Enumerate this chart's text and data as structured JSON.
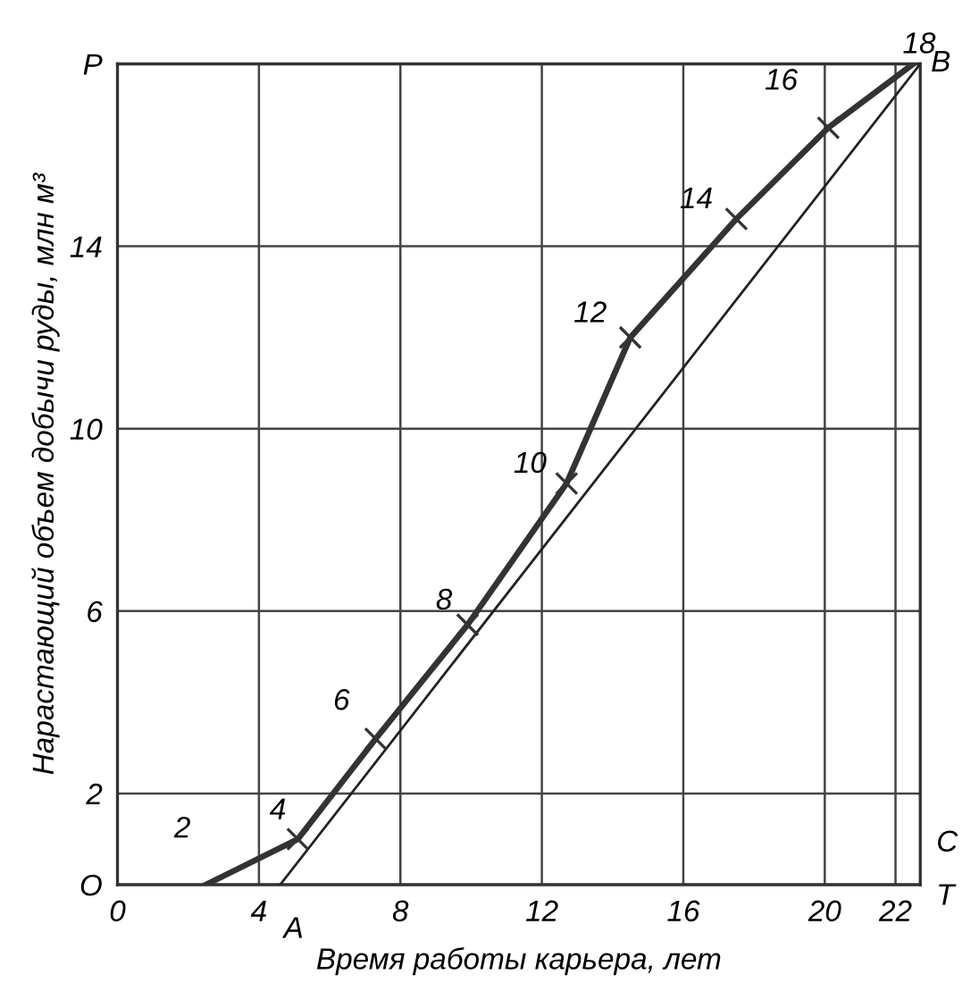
{
  "chart_data": {
    "type": "line",
    "xlabel": "Время работы карьера, лет",
    "ylabel": "Нарастающий объем добычи руды, млн м³",
    "xlim": [
      0,
      22.7
    ],
    "ylim": [
      0,
      18
    ],
    "xticks": [
      0,
      4,
      8,
      12,
      16,
      20,
      22
    ],
    "yticks": [
      {
        "value": 0,
        "label": "O"
      },
      2,
      6,
      10,
      14,
      {
        "value": 18,
        "label": "P"
      }
    ],
    "grid": true,
    "legend": false,
    "series": [
      {
        "color": "#333333",
        "marker": "none",
        "x": [
          2.5,
          5.1,
          7.3,
          9.9,
          12.7,
          14.5,
          17.5,
          20.1,
          22.5
        ],
        "values": [
          0,
          1.0,
          3.2,
          5.7,
          8.8,
          12.0,
          14.6,
          16.6,
          18
        ]
      },
      {
        "type": "scatter",
        "color": "#333333",
        "marker": "cross",
        "x": [
          5.1,
          7.3,
          9.9,
          12.7,
          14.5,
          17.5,
          20.1
        ],
        "values": [
          1.0,
          3.2,
          5.7,
          8.8,
          12.0,
          14.6,
          16.6
        ]
      },
      {
        "color": "#222222",
        "marker": "none",
        "x": [
          4.6,
          22.7
        ],
        "values": [
          0,
          18
        ]
      }
    ],
    "annotations": [
      {
        "text": "2",
        "x": 2.5,
        "y": 0
      },
      {
        "text": "4",
        "x": 5.1,
        "y": 1.0
      },
      {
        "text": "6",
        "x": 7.3,
        "y": 3.2
      },
      {
        "text": "8",
        "x": 9.9,
        "y": 5.7
      },
      {
        "text": "10",
        "x": 12.7,
        "y": 8.8
      },
      {
        "text": "12",
        "x": 14.5,
        "y": 12.0
      },
      {
        "text": "14",
        "x": 17.5,
        "y": 14.6
      },
      {
        "text": "16",
        "x": 20.1,
        "y": 16.6
      },
      {
        "text": "18",
        "x": 22.5,
        "y": 18
      },
      {
        "text": "A",
        "x": 4.6,
        "y": 0
      },
      {
        "text": "B",
        "x": 22.7,
        "y": 18
      },
      "C",
      "T"
    ]
  }
}
